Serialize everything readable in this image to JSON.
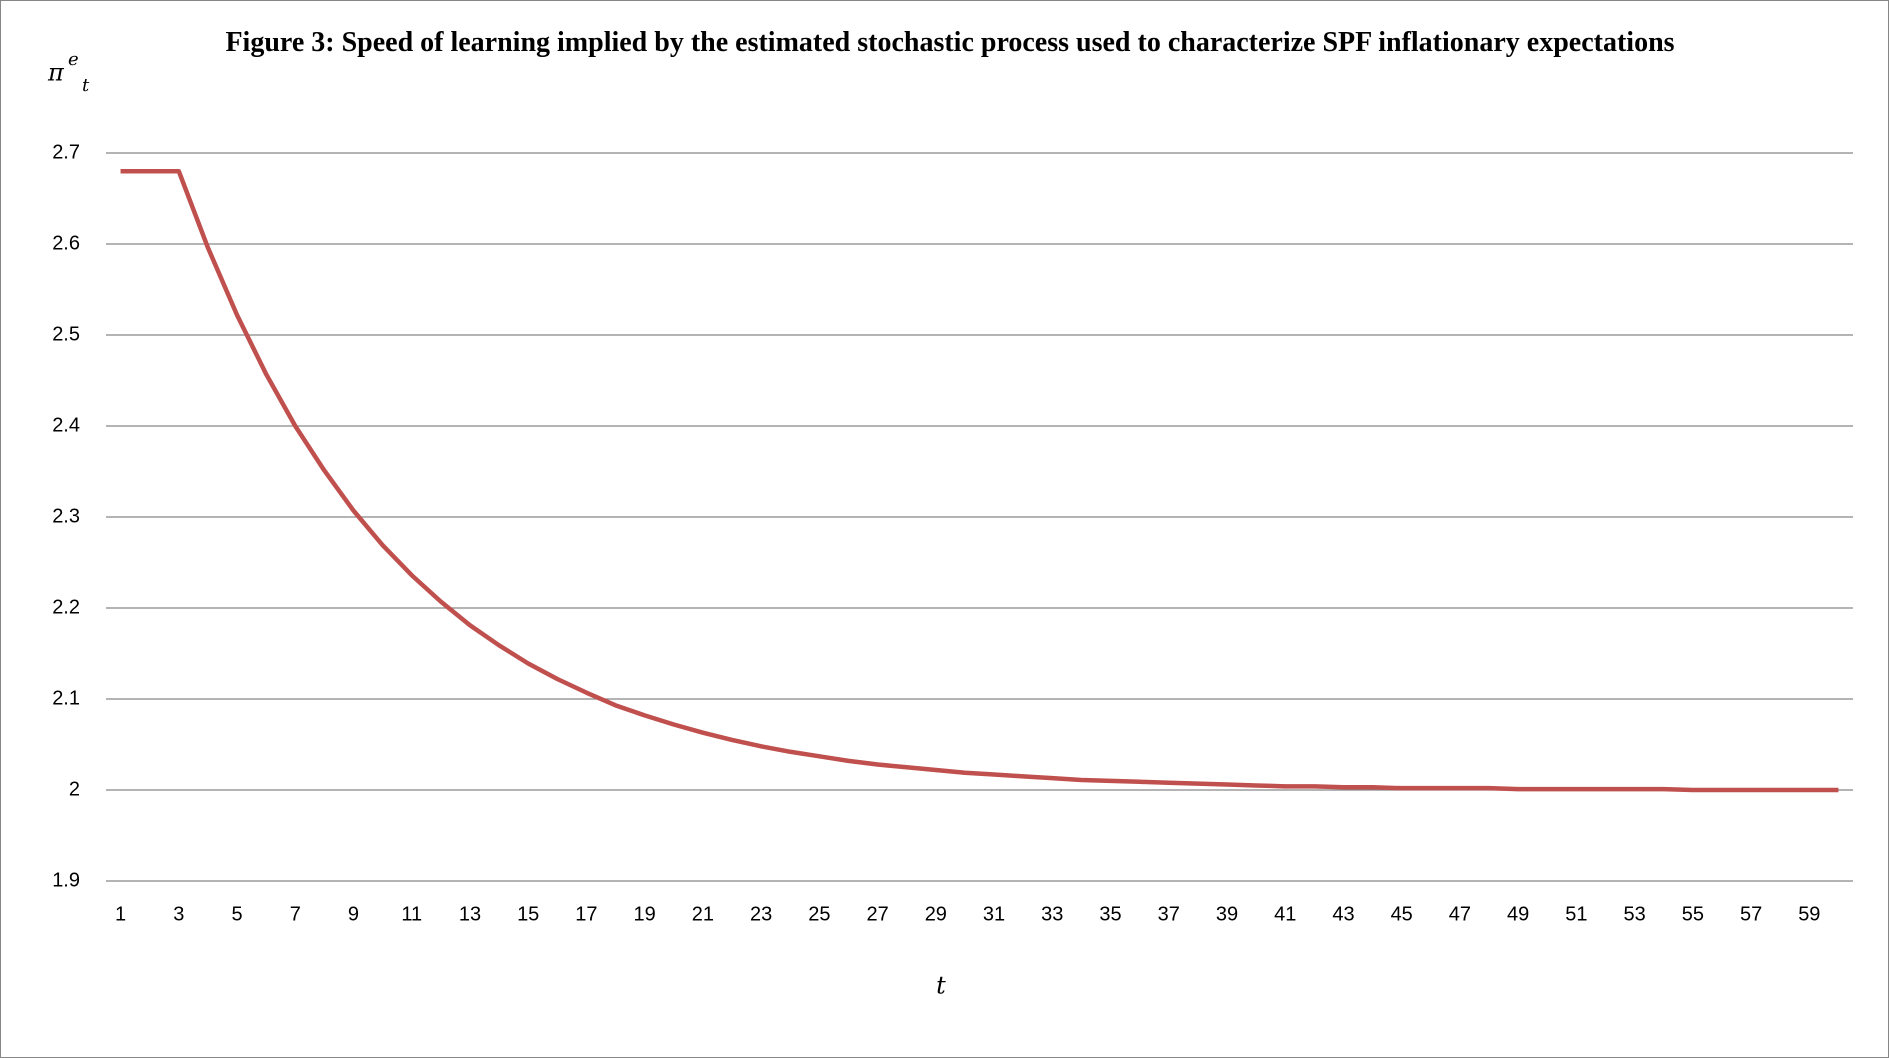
{
  "chart_data": {
    "type": "line",
    "title": "Figure 3: Speed of learning implied by the estimated stochastic process used to characterize SPF inflationary expectations",
    "y_label": {
      "base": "π",
      "sup": "e",
      "sub": "t"
    },
    "x_label": "t",
    "categories": [
      1,
      null,
      3,
      null,
      5,
      null,
      7,
      null,
      9,
      null,
      11,
      null,
      13,
      null,
      15,
      null,
      17,
      null,
      19,
      null,
      21,
      null,
      23,
      null,
      25,
      null,
      27,
      null,
      29,
      null,
      31,
      null,
      33,
      null,
      35,
      null,
      37,
      null,
      39,
      null,
      41,
      null,
      43,
      null,
      45,
      null,
      47,
      null,
      49,
      null,
      51,
      null,
      53,
      null,
      55,
      null,
      57,
      null,
      59,
      null
    ],
    "series": [
      {
        "name": "π e t",
        "color": "#c0504d",
        "values": [
          2.68,
          2.68,
          2.68,
          2.596,
          2.522,
          2.457,
          2.4,
          2.351,
          2.307,
          2.269,
          2.236,
          2.207,
          2.181,
          2.159,
          2.139,
          2.122,
          2.107,
          2.093,
          2.082,
          2.072,
          2.063,
          2.055,
          2.048,
          2.042,
          2.037,
          2.032,
          2.028,
          2.025,
          2.022,
          2.019,
          2.017,
          2.015,
          2.013,
          2.011,
          2.01,
          2.009,
          2.008,
          2.007,
          2.006,
          2.005,
          2.004,
          2.004,
          2.003,
          2.003,
          2.002,
          2.002,
          2.002,
          2.002,
          2.001,
          2.001,
          2.001,
          2.001,
          2.001,
          2.001,
          2,
          2,
          2,
          2,
          2,
          2
        ]
      }
    ],
    "ylim": [
      1.9,
      2.7
    ],
    "yticks": [
      1.9,
      2,
      2.1,
      2.2,
      2.3,
      2.4,
      2.5,
      2.6,
      2.7
    ],
    "grid": true
  }
}
